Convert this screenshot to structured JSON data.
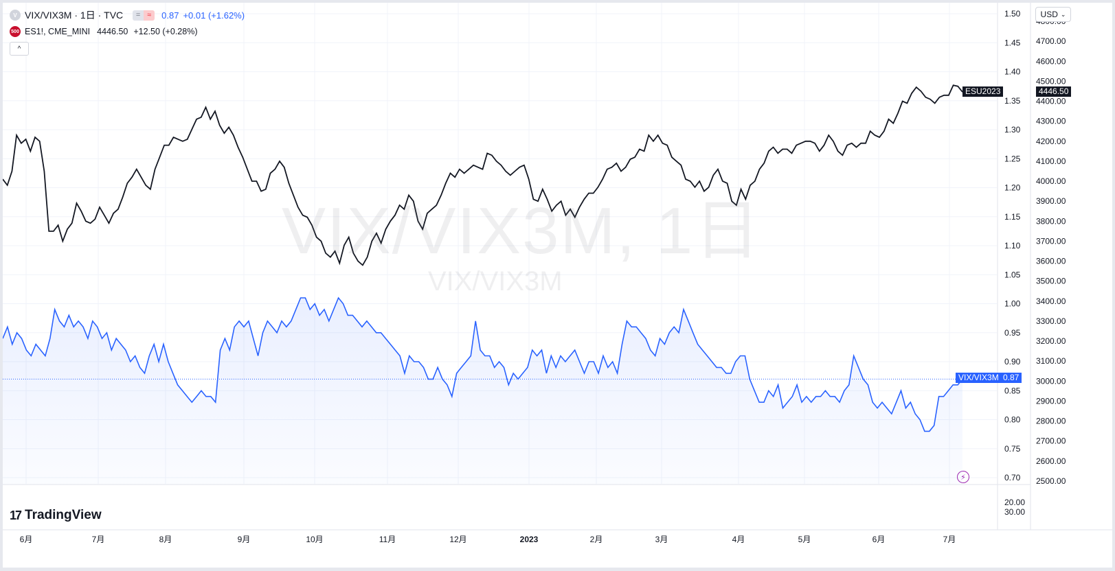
{
  "legend": {
    "main_symbol_icon": "V",
    "main_title": "VIX/VIX3M · 1日 · TVC",
    "main_icons": [
      "equals-icon",
      "approx-icon"
    ],
    "main_value": "0.87",
    "main_change": "+0.01 (+1.62%)",
    "compare_icon_label": "500",
    "compare_symbol": "ES1!, CME_MINI",
    "compare_value": "4446.50",
    "compare_change": "+12.50 (+0.28%)",
    "collapse_icon": "chevron-up-icon"
  },
  "watermark": {
    "big": "VIX/VIX3M, 1日",
    "small": "VIX/VIX3M"
  },
  "logo": {
    "text": "TradingView",
    "mark": "17"
  },
  "currency_button": "USD",
  "colors": {
    "vix_series": "#2962ff",
    "es_series": "#131722",
    "fill": "#e8eefc"
  },
  "axes": {
    "left_scale": [
      "1.50",
      "1.45",
      "1.40",
      "1.35",
      "1.30",
      "1.25",
      "1.20",
      "1.15",
      "1.10",
      "1.05",
      "1.00",
      "0.95",
      "0.90",
      "0.85",
      "0.80",
      "0.75",
      "0.70"
    ],
    "right_scale": [
      "4800.00",
      "4700.00",
      "4600.00",
      "4500.00",
      "4400.00",
      "4300.00",
      "4200.00",
      "4100.00",
      "4000.00",
      "3900.00",
      "3800.00",
      "3700.00",
      "3600.00",
      "3500.00",
      "3400.00",
      "3300.00",
      "3200.00",
      "3100.00",
      "3000.00",
      "2900.00",
      "2800.00",
      "2700.00",
      "2600.00",
      "2500.00"
    ],
    "lower_pane_scale": [
      "20.00",
      "30.00"
    ],
    "time_labels": [
      "6月",
      "7月",
      "8月",
      "9月",
      "10月",
      "11月",
      "12月",
      "2023",
      "2月",
      "3月",
      "4月",
      "5月",
      "6月",
      "7月"
    ]
  },
  "labels": {
    "es_tag": "ESU2023",
    "es_price": "4446.50",
    "vix_tag": "VIX/VIX3M",
    "vix_price": "0.87"
  },
  "chart_data": [
    {
      "type": "line",
      "series": [
        {
          "name": "ESU2023",
          "values": [
            4010,
            3980,
            4050,
            4230,
            4190,
            4210,
            4150,
            4220,
            4200,
            4050,
            3750,
            3750,
            3780,
            3700,
            3760,
            3790,
            3890,
            3850,
            3800,
            3790,
            3810,
            3870,
            3830,
            3790,
            3840,
            3860,
            3920,
            3990,
            4020,
            4060,
            4020,
            3980,
            3960,
            4060,
            4120,
            4180,
            4180,
            4220,
            4210,
            4200,
            4210,
            4260,
            4310,
            4320,
            4370,
            4310,
            4350,
            4280,
            4240,
            4270,
            4230,
            4170,
            4120,
            4060,
            4000,
            4000,
            3950,
            3960,
            4040,
            4060,
            4100,
            4070,
            3990,
            3930,
            3870,
            3830,
            3820,
            3780,
            3720,
            3700,
            3640,
            3620,
            3650,
            3590,
            3680,
            3720,
            3640,
            3600,
            3580,
            3620,
            3700,
            3740,
            3690,
            3760,
            3800,
            3830,
            3880,
            3860,
            3930,
            3900,
            3800,
            3760,
            3840,
            3860,
            3880,
            3930,
            3990,
            4040,
            4020,
            4060,
            4040,
            4060,
            4080,
            4070,
            4060,
            4140,
            4130,
            4100,
            4080,
            4050,
            4030,
            4050,
            4070,
            4080,
            4010,
            3910,
            3900,
            3960,
            3910,
            3850,
            3880,
            3900,
            3830,
            3860,
            3820,
            3870,
            3910,
            3940,
            3940,
            3970,
            4010,
            4060,
            4070,
            4090,
            4050,
            4070,
            4110,
            4120,
            4160,
            4150,
            4230,
            4200,
            4230,
            4190,
            4180,
            4120,
            4100,
            4080,
            4010,
            4000,
            3970,
            4000,
            3950,
            3970,
            4030,
            4060,
            4000,
            3990,
            3900,
            3880,
            3960,
            3910,
            3980,
            4000,
            4060,
            4090,
            4150,
            4170,
            4140,
            4160,
            4160,
            4140,
            4180,
            4190,
            4200,
            4200,
            4190,
            4150,
            4180,
            4230,
            4200,
            4150,
            4130,
            4180,
            4190,
            4170,
            4190,
            4190,
            4250,
            4230,
            4220,
            4250,
            4310,
            4290,
            4340,
            4400,
            4390,
            4440,
            4470,
            4450,
            4420,
            4410,
            4390,
            4420,
            4430,
            4430,
            4480,
            4475,
            4446.5
          ]
        }
      ],
      "ylim": [
        2500,
        4800
      ]
    },
    {
      "type": "area",
      "series": [
        {
          "name": "VIX/VIX3M",
          "values": [
            0.94,
            0.96,
            0.93,
            0.95,
            0.94,
            0.92,
            0.91,
            0.93,
            0.92,
            0.91,
            0.94,
            0.99,
            0.97,
            0.96,
            0.98,
            0.96,
            0.97,
            0.96,
            0.94,
            0.97,
            0.96,
            0.94,
            0.95,
            0.92,
            0.94,
            0.93,
            0.92,
            0.9,
            0.91,
            0.89,
            0.88,
            0.91,
            0.93,
            0.9,
            0.93,
            0.9,
            0.88,
            0.86,
            0.85,
            0.84,
            0.83,
            0.84,
            0.85,
            0.84,
            0.84,
            0.83,
            0.92,
            0.94,
            0.92,
            0.96,
            0.97,
            0.96,
            0.97,
            0.94,
            0.91,
            0.95,
            0.97,
            0.96,
            0.95,
            0.97,
            0.96,
            0.97,
            0.99,
            1.01,
            1.01,
            0.99,
            1.0,
            0.98,
            0.99,
            0.97,
            0.99,
            1.01,
            1.0,
            0.98,
            0.98,
            0.97,
            0.96,
            0.97,
            0.96,
            0.95,
            0.95,
            0.94,
            0.93,
            0.92,
            0.91,
            0.88,
            0.91,
            0.9,
            0.9,
            0.89,
            0.87,
            0.87,
            0.89,
            0.87,
            0.86,
            0.84,
            0.88,
            0.89,
            0.9,
            0.91,
            0.97,
            0.92,
            0.91,
            0.91,
            0.89,
            0.9,
            0.89,
            0.86,
            0.88,
            0.87,
            0.88,
            0.89,
            0.92,
            0.91,
            0.92,
            0.88,
            0.91,
            0.89,
            0.91,
            0.9,
            0.91,
            0.92,
            0.9,
            0.88,
            0.9,
            0.9,
            0.88,
            0.91,
            0.89,
            0.9,
            0.88,
            0.93,
            0.97,
            0.96,
            0.96,
            0.95,
            0.94,
            0.92,
            0.91,
            0.94,
            0.93,
            0.95,
            0.96,
            0.95,
            0.99,
            0.97,
            0.95,
            0.93,
            0.92,
            0.91,
            0.9,
            0.89,
            0.89,
            0.88,
            0.88,
            0.9,
            0.91,
            0.91,
            0.87,
            0.85,
            0.83,
            0.83,
            0.85,
            0.84,
            0.86,
            0.82,
            0.83,
            0.84,
            0.86,
            0.83,
            0.84,
            0.83,
            0.84,
            0.84,
            0.85,
            0.84,
            0.84,
            0.83,
            0.85,
            0.86,
            0.91,
            0.89,
            0.87,
            0.86,
            0.83,
            0.82,
            0.83,
            0.82,
            0.81,
            0.83,
            0.85,
            0.82,
            0.83,
            0.81,
            0.8,
            0.78,
            0.78,
            0.79,
            0.84,
            0.84,
            0.85,
            0.86,
            0.86,
            0.87
          ]
        }
      ],
      "ylim": [
        0.685,
        1.515
      ]
    }
  ]
}
